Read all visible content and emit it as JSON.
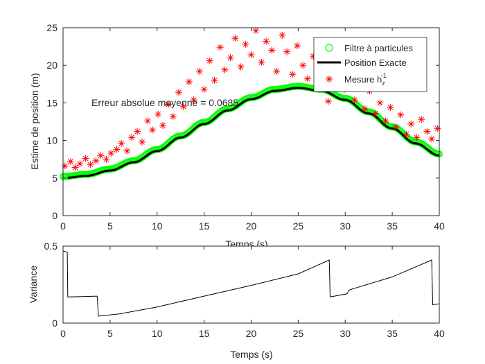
{
  "chart_data": [
    {
      "type": "line",
      "xlabel": "Temps (s)",
      "ylabel": "Estime de position (m)",
      "xlim": [
        0,
        40
      ],
      "ylim": [
        0,
        25
      ],
      "xticks": [
        0,
        5,
        10,
        15,
        20,
        25,
        30,
        35,
        40
      ],
      "yticks": [
        0,
        5,
        10,
        15,
        20,
        25
      ],
      "grid": false,
      "legend_position": "top-right",
      "annotation": "Erreur absolue moyenne = 0.0685",
      "colors": {
        "particle": "#00ff00",
        "exact": "#000000",
        "measure": "#ff0000"
      },
      "series": [
        {
          "name": "Filtre à particules",
          "marker": "circle",
          "x": [
            0,
            2.5,
            5,
            7.5,
            10,
            12.5,
            15,
            17.5,
            20,
            22.5,
            25,
            27.5,
            30,
            32.5,
            35,
            37.5,
            40
          ],
          "y": [
            5.2,
            5.5,
            6.2,
            7.3,
            8.8,
            10.6,
            12.4,
            14.2,
            15.7,
            16.8,
            17.2,
            16.8,
            15.6,
            13.8,
            11.8,
            9.8,
            8.2
          ]
        },
        {
          "name": "Position Exacte",
          "marker": "line",
          "x": [
            0,
            2.5,
            5,
            7.5,
            10,
            12.5,
            15,
            17.5,
            20,
            22.5,
            25,
            27.5,
            30,
            32.5,
            35,
            37.5,
            40
          ],
          "y": [
            5.0,
            5.3,
            6.0,
            7.1,
            8.6,
            10.4,
            12.2,
            14.0,
            15.5,
            16.6,
            17.0,
            16.6,
            15.4,
            13.6,
            11.6,
            9.6,
            8.0
          ]
        },
        {
          "name": "Mesure h_z^-1",
          "legend_main": "Mesure h",
          "legend_sub": "z",
          "legend_sup": "-1",
          "marker": "asterisk",
          "x": [
            0.2,
            0.8,
            1.3,
            1.8,
            2.4,
            2.9,
            3.5,
            4.0,
            4.6,
            5.1,
            5.7,
            6.2,
            6.8,
            7.3,
            7.9,
            8.4,
            9.0,
            9.5,
            10.1,
            10.6,
            11.2,
            11.7,
            12.3,
            12.8,
            13.4,
            13.9,
            14.5,
            15.0,
            15.6,
            16.1,
            16.7,
            17.2,
            17.8,
            18.3,
            18.9,
            19.4,
            20.0,
            20.5,
            21.1,
            21.6,
            22.2,
            22.7,
            23.3,
            23.8,
            24.4,
            24.9,
            25.5,
            26.0,
            26.6,
            27.1,
            27.7,
            28.2,
            28.8,
            29.3,
            29.9,
            30.4,
            31.0,
            31.5,
            32.1,
            32.6,
            33.2,
            33.7,
            34.3,
            34.8,
            35.4,
            35.9,
            36.5,
            37.0,
            37.6,
            38.1,
            38.7,
            39.2,
            39.8
          ],
          "y": [
            6.6,
            7.2,
            6.4,
            6.9,
            7.6,
            6.8,
            7.3,
            8.0,
            7.5,
            8.3,
            8.8,
            9.6,
            8.6,
            10.4,
            11.2,
            9.8,
            12.6,
            11.4,
            13.5,
            12.0,
            14.8,
            13.2,
            16.4,
            14.5,
            17.8,
            15.4,
            19.2,
            16.8,
            20.6,
            18.0,
            22.4,
            19.4,
            21.0,
            23.6,
            19.8,
            22.8,
            21.4,
            24.6,
            20.4,
            23.2,
            22.0,
            19.2,
            24.0,
            21.8,
            18.8,
            22.6,
            20.0,
            18.2,
            21.2,
            17.6,
            19.8,
            15.2,
            20.4,
            18.6,
            16.8,
            18.4,
            15.4,
            17.2,
            14.2,
            16.6,
            13.6,
            15.0,
            12.6,
            14.4,
            11.8,
            13.4,
            10.8,
            12.2,
            10.4,
            12.8,
            11.2,
            10.2,
            11.6
          ]
        }
      ]
    },
    {
      "type": "line",
      "xlabel": "Temps (s)",
      "ylabel": "Variance",
      "xlim": [
        0,
        40
      ],
      "ylim": [
        0,
        0.5
      ],
      "xticks": [
        0,
        5,
        10,
        15,
        20,
        25,
        30,
        35,
        40
      ],
      "yticks": [
        0,
        0.5
      ],
      "ytick_labels": [
        "0",
        "0.5"
      ],
      "grid": false,
      "series": [
        {
          "x": [
            0,
            0.45,
            0.5,
            3.6,
            3.65,
            3.75,
            4.5,
            6,
            10,
            15,
            20,
            25,
            28.3,
            28.4,
            30.2,
            30.3,
            30.4,
            35,
            39.2,
            39.3,
            40
          ],
          "y": [
            0.47,
            0.46,
            0.17,
            0.175,
            0.17,
            0.045,
            0.05,
            0.06,
            0.105,
            0.175,
            0.245,
            0.32,
            0.41,
            0.17,
            0.19,
            0.2,
            0.215,
            0.3,
            0.41,
            0.12,
            0.125
          ]
        }
      ]
    }
  ]
}
